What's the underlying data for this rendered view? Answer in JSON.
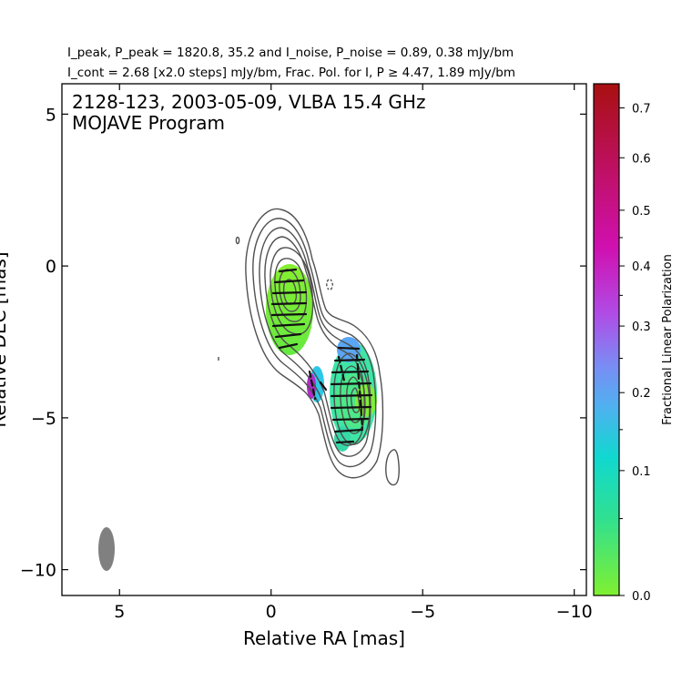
{
  "chart_data": {
    "type": "contour-polarization-map",
    "header": {
      "line1": "I_peak, P_peak = 1820.8, 35.2 and I_noise, P_noise = 0.89, 0.38 mJy/bm",
      "line2": "I_cont = 2.68 [x2.0 steps] mJy/bm, Frac. Pol. for I, P ≥ 4.47, 1.89 mJy/bm"
    },
    "title_line1": "2128-123, 2003-05-09, VLBA 15.4 GHz",
    "title_line2": "MOJAVE Program",
    "xlabel": "Relative RA [mas]",
    "ylabel": "Relative DEC [mas]",
    "xlim": [
      6.9,
      -10.4
    ],
    "ylim": [
      -10.85,
      6.0
    ],
    "x_ticks": [
      5,
      0,
      -5,
      -10
    ],
    "x_tick_labels": [
      "5",
      "0",
      "−5",
      "−10"
    ],
    "y_ticks": [
      5,
      0,
      -5,
      -10
    ],
    "y_tick_labels": [
      "5",
      "0",
      "−5",
      "−10"
    ],
    "colorbar": {
      "label": "Fractional Linear Polarization",
      "min": 0.0,
      "max": 0.75,
      "ticks": [
        0.0,
        0.1,
        0.2,
        0.3,
        0.4,
        0.5,
        0.6,
        0.7
      ],
      "tick_labels": [
        "0.0",
        "0.1",
        "0.2",
        "0.3",
        "0.4",
        "0.5",
        "0.6",
        "0.7"
      ],
      "colors": [
        "#80f030",
        "#30e090",
        "#10d8d0",
        "#50b0f0",
        "#8a7cf2",
        "#b040e0",
        "#d010b0",
        "#b01030"
      ]
    },
    "contour_color": "#505050",
    "beam": {
      "x": 5.35,
      "y": -9.3,
      "major": 1.45,
      "minor": 0.55,
      "color": "#808080"
    },
    "components": [
      {
        "x": -0.6,
        "y": -1.2,
        "frac_pol": 0.02
      },
      {
        "x": -2.75,
        "y": -4.4,
        "frac_pol": 0.06
      },
      {
        "x": -1.45,
        "y": -3.95,
        "frac_pol": 0.35
      }
    ]
  }
}
